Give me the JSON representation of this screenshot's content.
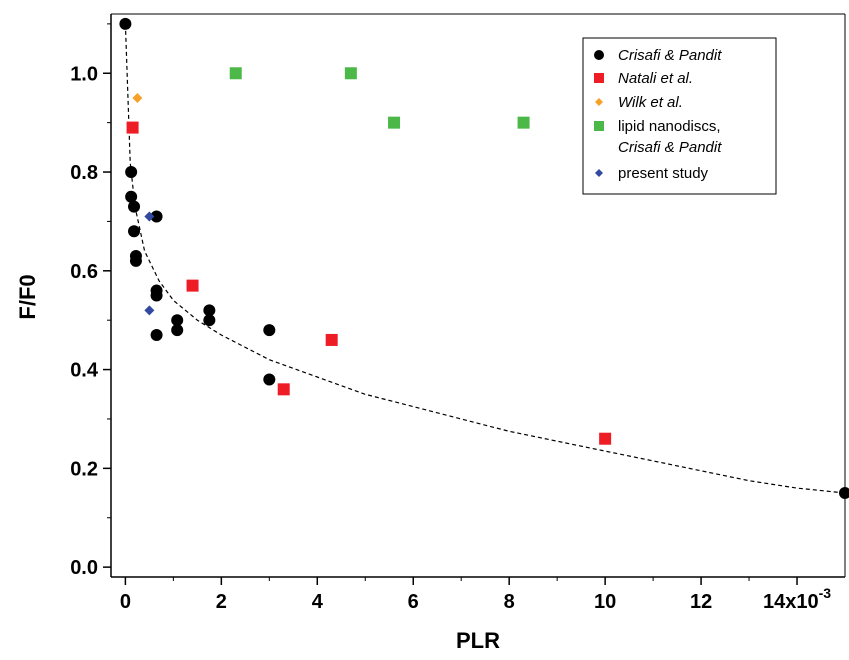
{
  "chart_data": {
    "type": "scatter",
    "xlabel": "PLR",
    "ylabel": "F/F0",
    "xlim": [
      -0.0003,
      0.015
    ],
    "ylim": [
      -0.02,
      1.12
    ],
    "x_ticks": [
      0,
      0.002,
      0.004,
      0.006,
      0.008,
      0.01,
      0.012,
      0.014
    ],
    "x_tick_labels": [
      "0",
      "2",
      "4",
      "6",
      "8",
      "10",
      "12",
      "14x10"
    ],
    "x_tick_exponent": "-3",
    "y_ticks": [
      0.0,
      0.2,
      0.4,
      0.6,
      0.8,
      1.0
    ],
    "y_tick_labels": [
      "0.0",
      "0.2",
      "0.4",
      "0.6",
      "0.8",
      "1.0"
    ],
    "grid": false,
    "legend_position": "top-right",
    "series": [
      {
        "name": "Crisafi & Pandit",
        "marker": "circle",
        "color": "#000000",
        "points": [
          {
            "x": 0.0,
            "y": 1.1
          },
          {
            "x": 0.00012,
            "y": 0.8
          },
          {
            "x": 0.00012,
            "y": 0.75
          },
          {
            "x": 0.00018,
            "y": 0.73
          },
          {
            "x": 0.00018,
            "y": 0.68
          },
          {
            "x": 0.00022,
            "y": 0.63
          },
          {
            "x": 0.00022,
            "y": 0.62
          },
          {
            "x": 0.00065,
            "y": 0.71
          },
          {
            "x": 0.00065,
            "y": 0.56
          },
          {
            "x": 0.00065,
            "y": 0.55
          },
          {
            "x": 0.00065,
            "y": 0.47
          },
          {
            "x": 0.00108,
            "y": 0.5
          },
          {
            "x": 0.00108,
            "y": 0.48
          },
          {
            "x": 0.00175,
            "y": 0.52
          },
          {
            "x": 0.00175,
            "y": 0.5
          },
          {
            "x": 0.003,
            "y": 0.48
          },
          {
            "x": 0.003,
            "y": 0.38
          },
          {
            "x": 0.015,
            "y": 0.15
          }
        ]
      },
      {
        "name": "Natali et al.",
        "marker": "square",
        "color": "#ee1c24",
        "points": [
          {
            "x": 0.00015,
            "y": 0.89
          },
          {
            "x": 0.0014,
            "y": 0.57
          },
          {
            "x": 0.0033,
            "y": 0.36
          },
          {
            "x": 0.0043,
            "y": 0.46
          },
          {
            "x": 0.01,
            "y": 0.26
          }
        ]
      },
      {
        "name": "Wilk et al.",
        "marker": "diamond",
        "color": "#f7a128",
        "points": [
          {
            "x": 0.00025,
            "y": 0.95
          }
        ]
      },
      {
        "name": "lipid nanodiscs, Crisafi & Pandit",
        "marker": "square",
        "color": "#4cb848",
        "points": [
          {
            "x": 0.0023,
            "y": 1.0
          },
          {
            "x": 0.0047,
            "y": 1.0
          },
          {
            "x": 0.0056,
            "y": 0.9
          },
          {
            "x": 0.0083,
            "y": 0.9
          }
        ]
      },
      {
        "name": "present study",
        "marker": "diamond",
        "color": "#3348a0",
        "points": [
          {
            "x": 0.0005,
            "y": 0.71
          },
          {
            "x": 0.0005,
            "y": 0.52
          }
        ]
      }
    ],
    "fit_curve": {
      "style": "dashed",
      "color": "#000000",
      "points": [
        {
          "x": 0.0,
          "y": 1.1
        },
        {
          "x": 0.0001,
          "y": 0.82
        },
        {
          "x": 0.0002,
          "y": 0.73
        },
        {
          "x": 0.0004,
          "y": 0.64
        },
        {
          "x": 0.0007,
          "y": 0.58
        },
        {
          "x": 0.001,
          "y": 0.54
        },
        {
          "x": 0.0015,
          "y": 0.5
        },
        {
          "x": 0.002,
          "y": 0.47
        },
        {
          "x": 0.003,
          "y": 0.42
        },
        {
          "x": 0.004,
          "y": 0.385
        },
        {
          "x": 0.005,
          "y": 0.35
        },
        {
          "x": 0.006,
          "y": 0.325
        },
        {
          "x": 0.007,
          "y": 0.3
        },
        {
          "x": 0.008,
          "y": 0.275
        },
        {
          "x": 0.009,
          "y": 0.255
        },
        {
          "x": 0.01,
          "y": 0.235
        },
        {
          "x": 0.011,
          "y": 0.215
        },
        {
          "x": 0.012,
          "y": 0.195
        },
        {
          "x": 0.013,
          "y": 0.175
        },
        {
          "x": 0.014,
          "y": 0.16
        },
        {
          "x": 0.015,
          "y": 0.15
        }
      ]
    }
  },
  "legend": {
    "items": [
      {
        "line1": "Crisafi & Pandit",
        "line2": "",
        "italic1": true,
        "italic2": false
      },
      {
        "line1": "Natali et al.",
        "line2": "",
        "italic1": true,
        "italic2": false
      },
      {
        "line1": "Wilk et al.",
        "line2": "",
        "italic1": true,
        "italic2": false
      },
      {
        "line1": "lipid nanodiscs,",
        "line2": "Crisafi & Pandit",
        "italic1": false,
        "italic2": true
      },
      {
        "line1": "present study",
        "line2": "",
        "italic1": false,
        "italic2": false
      }
    ]
  }
}
